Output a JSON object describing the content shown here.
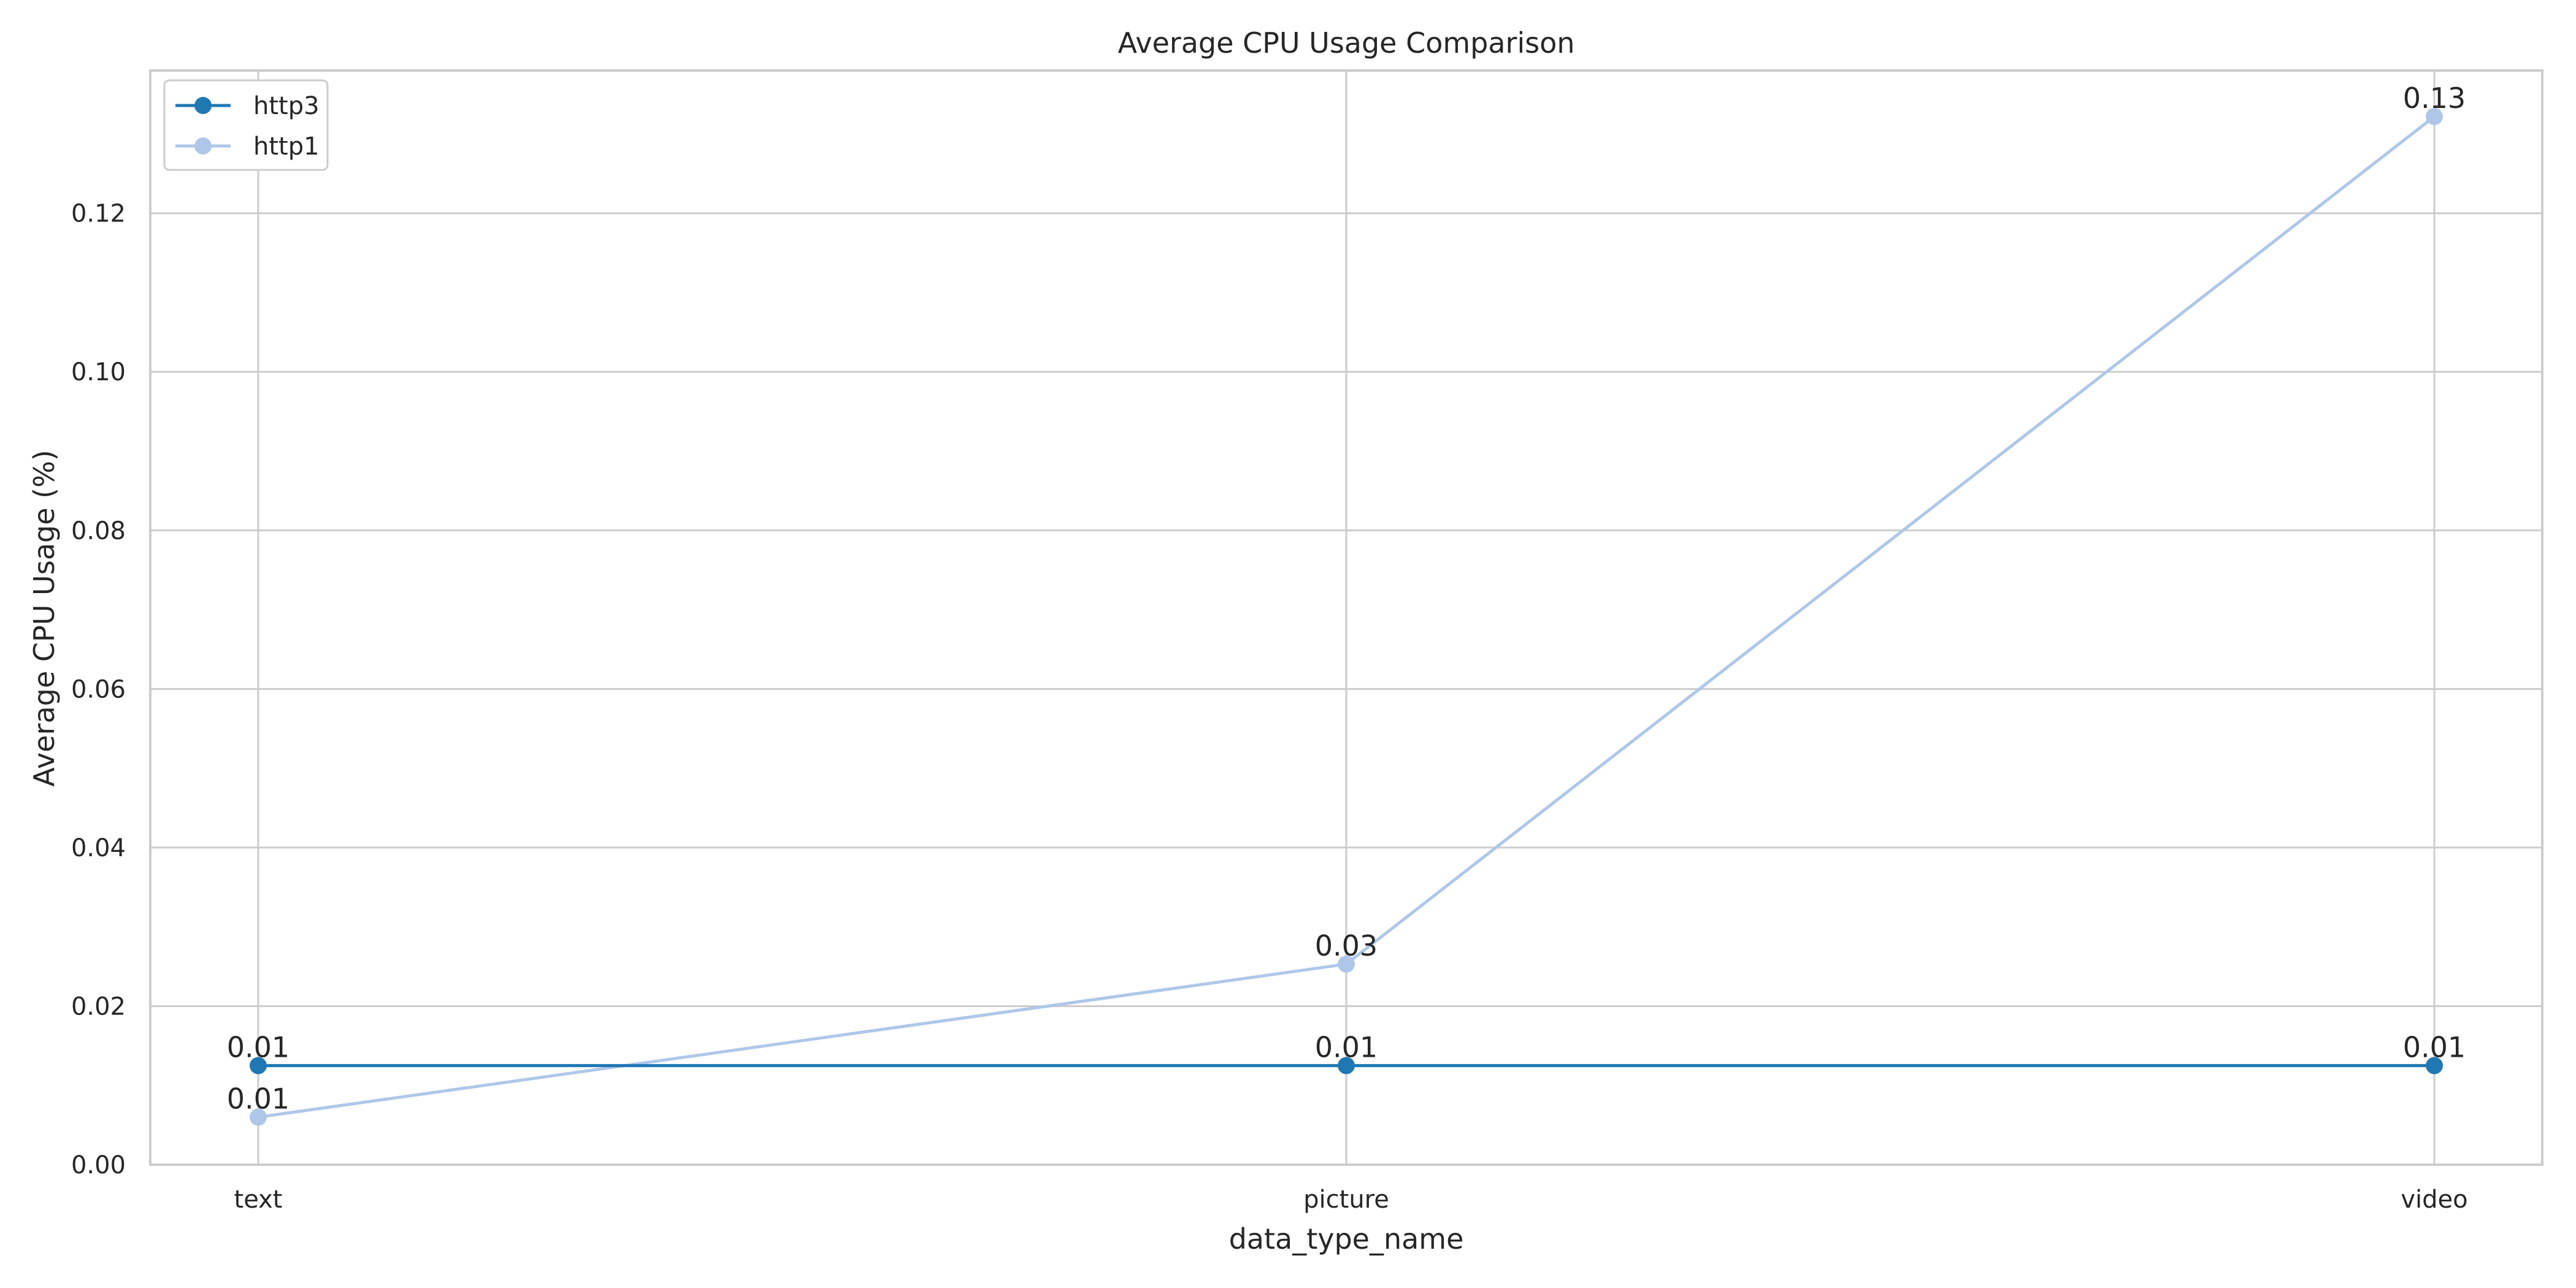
{
  "chart_data": {
    "type": "line",
    "title": "Average CPU Usage Comparison",
    "xlabel": "data_type_name",
    "ylabel": "Average CPU Usage (%)",
    "categories": [
      "text",
      "picture",
      "video"
    ],
    "ylim": [
      0,
      0.138
    ],
    "yticks": [
      0.0,
      0.02,
      0.04,
      0.06,
      0.08,
      0.1,
      0.12
    ],
    "ytick_labels": [
      "0.00",
      "0.02",
      "0.04",
      "0.06",
      "0.08",
      "0.10",
      "0.12"
    ],
    "grid": true,
    "legend_position": "top-left",
    "series": [
      {
        "name": "http3",
        "color": "#1f77b4",
        "values": [
          0.0125,
          0.0125,
          0.0125
        ],
        "data_labels": [
          "0.01",
          "0.01",
          "0.01"
        ]
      },
      {
        "name": "http1",
        "color": "#aec7e8",
        "values": [
          0.006,
          0.0253,
          0.1322
        ],
        "data_labels": [
          "0.01",
          "0.03",
          "0.13"
        ]
      }
    ]
  }
}
